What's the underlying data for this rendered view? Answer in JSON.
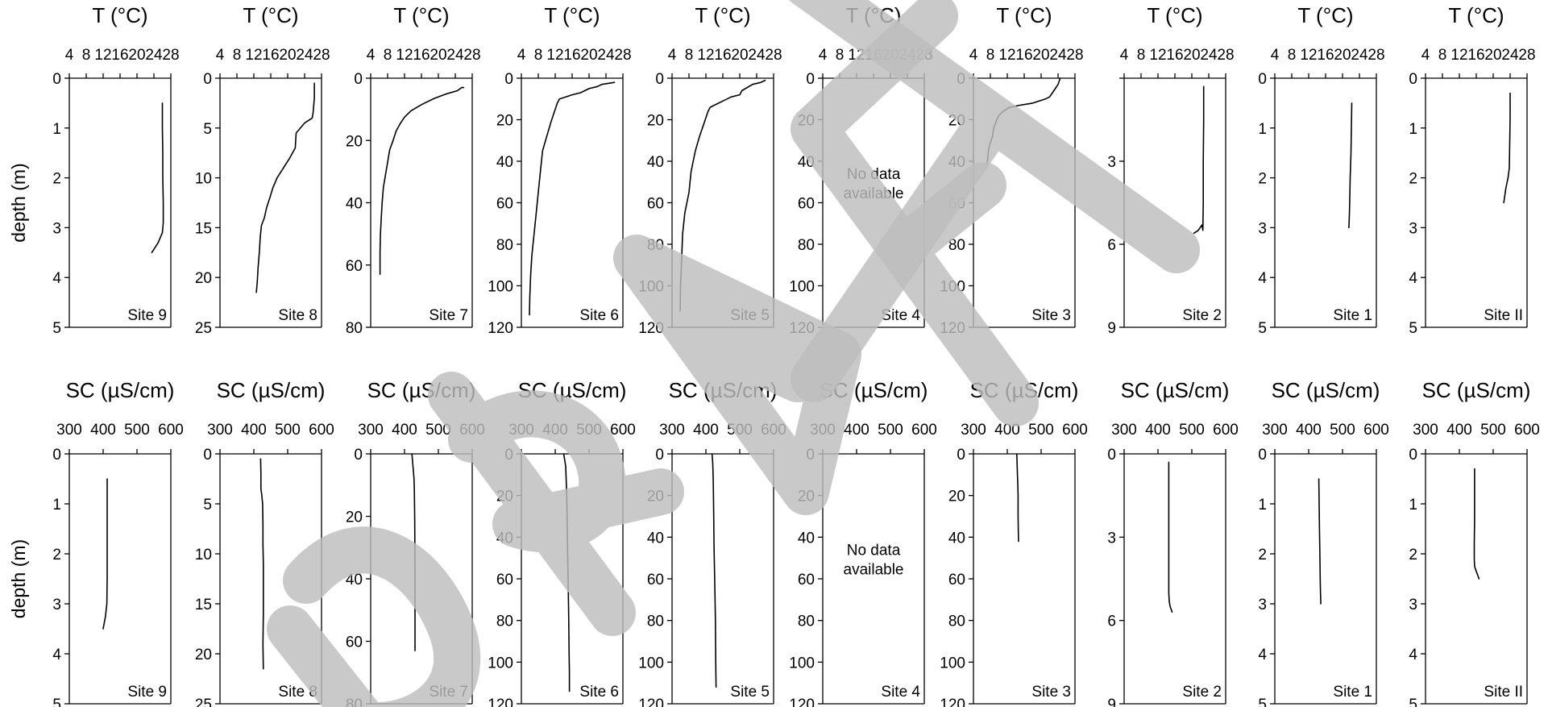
{
  "page": {
    "watermark": {
      "text": "DRAFT",
      "color": "#bdbdbd"
    }
  },
  "labels": {
    "ylabel": "depth (m)",
    "no_data": "No data\navailable"
  },
  "chart_data": [
    {
      "type": "line",
      "row": "T",
      "title": "T (°C)",
      "xticks": [
        "4",
        "8",
        "12",
        "16",
        "20",
        "24",
        "28"
      ],
      "xlim": [
        4,
        28
      ],
      "panels": [
        {
          "site": "Site 9",
          "ylim": [
            0,
            5
          ],
          "yticks": [
            0,
            1,
            2,
            3,
            4,
            5
          ],
          "has_data": true,
          "series": [
            {
              "x": [
                26.0,
                26.0,
                26.1,
                26.1,
                26.2,
                26.2,
                26.0,
                25.0,
                23.5
              ],
              "y": [
                0.5,
                1.0,
                1.5,
                2.0,
                2.5,
                2.9,
                3.1,
                3.3,
                3.5
              ]
            }
          ]
        },
        {
          "site": "Site 8",
          "ylim": [
            0,
            25
          ],
          "yticks": [
            0,
            5,
            10,
            15,
            20,
            25
          ],
          "has_data": true,
          "series": [
            {
              "x": [
                26.3,
                26.3,
                26.0,
                25.8,
                24.0,
                22.0,
                21.8,
                20.5,
                19.0,
                17.5,
                16.5,
                15.8,
                15.0,
                14.5,
                13.8,
                13.5,
                13.3,
                13.0,
                12.8,
                12.6
              ],
              "y": [
                0.5,
                2.0,
                3.5,
                4.0,
                4.5,
                5.5,
                7.0,
                8.0,
                9.0,
                10.0,
                11.0,
                12.0,
                13.0,
                14.0,
                14.8,
                16.0,
                17.5,
                19.0,
                20.5,
                21.5
              ]
            }
          ]
        },
        {
          "site": "Site 7",
          "ylim": [
            0,
            80
          ],
          "yticks": [
            0,
            20,
            40,
            60,
            80
          ],
          "has_data": true,
          "series": [
            {
              "x": [
                26.0,
                25.5,
                24.5,
                22.0,
                19.0,
                16.0,
                13.5,
                12.0,
                11.0,
                10.0,
                9.3,
                8.5,
                8.0,
                7.5,
                7.0,
                6.7,
                6.5,
                6.3,
                6.2,
                6.2
              ],
              "y": [
                3.0,
                3.0,
                4.0,
                5.0,
                6.5,
                8.5,
                10.5,
                12.5,
                14.5,
                17.0,
                20.0,
                23.0,
                27.0,
                31.0,
                35.0,
                40.0,
                45.0,
                50.0,
                56.0,
                63.0
              ]
            }
          ]
        },
        {
          "site": "Site 6",
          "ylim": [
            0,
            120
          ],
          "yticks": [
            0,
            20,
            40,
            60,
            80,
            100,
            120
          ],
          "has_data": true,
          "series": [
            {
              "x": [
                26.0,
                23.0,
                22.0,
                20.0,
                18.0,
                16.0,
                14.5,
                13.0,
                12.5,
                12.0,
                11.5,
                11.0,
                10.0,
                9.0,
                8.5,
                8.0,
                7.5,
                7.0,
                6.5,
                6.2,
                6.0,
                5.9
              ],
              "y": [
                2.0,
                3.0,
                4.0,
                5.0,
                7.0,
                8.0,
                9.0,
                10.0,
                12.0,
                15.0,
                18.0,
                21.0,
                28.0,
                35.0,
                45.0,
                55.0,
                65.0,
                75.0,
                85.0,
                95.0,
                105.0,
                114.0
              ]
            }
          ]
        },
        {
          "site": "Site 5",
          "ylim": [
            0,
            120
          ],
          "yticks": [
            0,
            20,
            40,
            60,
            80,
            100,
            120
          ],
          "has_data": true,
          "series": [
            {
              "x": [
                26.0,
                25.0,
                23.0,
                20.5,
                20.0,
                18.0,
                16.0,
                15.0,
                14.0,
                13.0,
                12.5,
                11.5,
                10.5,
                9.5,
                8.5,
                8.0,
                7.0,
                6.5,
                6.3,
                6.0,
                5.9
              ],
              "y": [
                1.0,
                2.0,
                3.0,
                6.0,
                8.0,
                9.0,
                11.0,
                12.0,
                13.0,
                14.0,
                16.0,
                22.0,
                28.0,
                35.0,
                45.0,
                55.0,
                65.0,
                75.0,
                85.0,
                100.0,
                112.0
              ]
            }
          ]
        },
        {
          "site": "Site 4",
          "ylim": [
            0,
            120
          ],
          "yticks": [
            0,
            20,
            40,
            60,
            80,
            100,
            120
          ],
          "has_data": false,
          "series": []
        },
        {
          "site": "Site 3",
          "ylim": [
            0,
            120
          ],
          "yticks": [
            0,
            20,
            40,
            60,
            80,
            100,
            120
          ],
          "has_data": true,
          "series": [
            {
              "x": [
                24.5,
                24.0,
                23.0,
                22.0,
                21.0,
                18.0,
                15.0,
                12.5,
                11.0,
                10.0,
                9.5,
                8.8,
                8.5,
                8.0,
                7.6,
                7.4,
                7.2
              ],
              "y": [
                0.0,
                3.0,
                6.0,
                9.0,
                10.0,
                12.0,
                13.0,
                14.0,
                16.0,
                18.0,
                20.0,
                24.0,
                28.0,
                31.0,
                34.0,
                38.0,
                42.0
              ]
            }
          ]
        },
        {
          "site": "Site 2",
          "ylim": [
            0,
            9
          ],
          "yticks": [
            0,
            3,
            6,
            9
          ],
          "yticks_shown": [
            3,
            6,
            9
          ],
          "has_data": true,
          "series": [
            {
              "x": [
                22.8,
                22.8,
                22.7,
                22.7,
                22.6,
                22.4,
                21.5,
                20.5
              ],
              "y": [
                0.3,
                1.5,
                3.0,
                4.5,
                5.5,
                5.3,
                5.5,
                5.6
              ]
            }
          ]
        },
        {
          "site": "Site 1",
          "ylim": [
            0,
            5
          ],
          "yticks": [
            0,
            1,
            2,
            3,
            4,
            5
          ],
          "has_data": true,
          "series": [
            {
              "x": [
                22.2,
                22.1,
                22.0,
                21.8,
                21.7,
                21.6,
                21.5
              ],
              "y": [
                0.5,
                1.0,
                1.5,
                2.0,
                2.5,
                2.8,
                3.0
              ]
            }
          ]
        },
        {
          "site": "Site II",
          "ylim": [
            0,
            5
          ],
          "yticks": [
            0,
            1,
            2,
            3,
            4,
            5
          ],
          "has_data": true,
          "series": [
            {
              "x": [
                24.0,
                24.0,
                23.9,
                23.8,
                23.5,
                23.0,
                22.5
              ],
              "y": [
                0.3,
                0.8,
                1.3,
                1.8,
                2.0,
                2.2,
                2.5
              ]
            }
          ]
        }
      ]
    },
    {
      "type": "line",
      "row": "SC",
      "title": "SC (µS/cm)",
      "xticks": [
        "300",
        "400",
        "500",
        "600"
      ],
      "xlim": [
        300,
        600
      ],
      "panels": [
        {
          "site": "Site 9",
          "ylim": [
            0,
            5
          ],
          "yticks": [
            0,
            1,
            2,
            3,
            4,
            5
          ],
          "has_data": true,
          "series": [
            {
              "x": [
                412,
                412,
                412,
                412,
                412,
                411,
                407,
                400
              ],
              "y": [
                0.5,
                1.0,
                1.5,
                2.0,
                2.5,
                3.0,
                3.25,
                3.5
              ]
            }
          ]
        },
        {
          "site": "Site 8",
          "ylim": [
            0,
            25
          ],
          "yticks": [
            0,
            5,
            10,
            15,
            20,
            25
          ],
          "has_data": true,
          "series": [
            {
              "x": [
                420,
                421,
                421,
                423,
                426,
                427,
                427,
                428,
                428,
                428,
                427,
                428
              ],
              "y": [
                0.5,
                2.0,
                3.5,
                4.0,
                5.0,
                7.0,
                9.0,
                11.0,
                13.0,
                16.0,
                19.0,
                21.5
              ]
            }
          ]
        },
        {
          "site": "Site 7",
          "ylim": [
            0,
            80
          ],
          "yticks": [
            0,
            20,
            40,
            60,
            80
          ],
          "has_data": true,
          "series": [
            {
              "x": [
                422,
                425,
                428,
                429,
                430,
                431,
                431,
                431
              ],
              "y": [
                0.0,
                4.0,
                8.0,
                12.0,
                20.0,
                35.0,
                50.0,
                63.0
              ]
            }
          ]
        },
        {
          "site": "Site 6",
          "ylim": [
            0,
            120
          ],
          "yticks": [
            0,
            20,
            40,
            60,
            80,
            100,
            120
          ],
          "has_data": true,
          "series": [
            {
              "x": [
                425,
                428,
                431,
                432,
                434,
                436,
                438,
                440,
                441,
                442,
                442
              ],
              "y": [
                0.0,
                3.0,
                6.0,
                10.0,
                20.0,
                40.0,
                60.0,
                80.0,
                95.0,
                105.0,
                114.0
              ]
            }
          ]
        },
        {
          "site": "Site 5",
          "ylim": [
            0,
            120
          ],
          "yticks": [
            0,
            20,
            40,
            60,
            80,
            100,
            120
          ],
          "has_data": true,
          "series": [
            {
              "x": [
                418,
                420,
                421,
                422,
                423,
                424,
                426,
                428,
                429,
                430
              ],
              "y": [
                0.0,
                4.0,
                8.0,
                15.0,
                30.0,
                45.0,
                60.0,
                80.0,
                100.0,
                112.0
              ]
            }
          ]
        },
        {
          "site": "Site 4",
          "ylim": [
            0,
            120
          ],
          "yticks": [
            0,
            20,
            40,
            60,
            80,
            100,
            120
          ],
          "has_data": false,
          "series": []
        },
        {
          "site": "Site 3",
          "ylim": [
            0,
            120
          ],
          "yticks": [
            0,
            20,
            40,
            60,
            80,
            100,
            120
          ],
          "has_data": true,
          "series": [
            {
              "x": [
                428,
                429,
                430,
                431,
                432,
                432,
                433
              ],
              "y": [
                0.0,
                5.0,
                10.0,
                14.0,
                20.0,
                30.0,
                42.0
              ]
            }
          ]
        },
        {
          "site": "Site 2",
          "ylim": [
            0,
            9
          ],
          "yticks": [
            0,
            3,
            6,
            9
          ],
          "yticks_shown": [
            0,
            3,
            6,
            9
          ],
          "has_data": true,
          "series": [
            {
              "x": [
                432,
                432,
                432,
                432,
                432,
                433,
                436,
                442
              ],
              "y": [
                0.3,
                1.5,
                3.0,
                4.0,
                5.0,
                5.3,
                5.5,
                5.7
              ]
            }
          ]
        },
        {
          "site": "Site 1",
          "ylim": [
            0,
            5
          ],
          "yticks": [
            0,
            1,
            2,
            3,
            4,
            5
          ],
          "has_data": true,
          "series": [
            {
              "x": [
                430,
                431,
                432,
                433,
                434,
                435,
                436
              ],
              "y": [
                0.5,
                1.0,
                1.5,
                2.0,
                2.5,
                2.8,
                3.0
              ]
            }
          ]
        },
        {
          "site": "Site II",
          "ylim": [
            0,
            5
          ],
          "yticks": [
            0,
            1,
            2,
            3,
            4,
            5
          ],
          "has_data": true,
          "series": [
            {
              "x": [
                445,
                445,
                445,
                444,
                444,
                445,
                450,
                458
              ],
              "y": [
                0.3,
                0.8,
                1.3,
                1.8,
                2.1,
                2.25,
                2.35,
                2.5
              ]
            }
          ]
        }
      ]
    }
  ]
}
